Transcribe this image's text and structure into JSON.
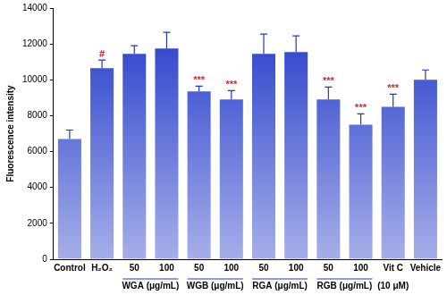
{
  "chart_data": {
    "type": "bar",
    "y_label": "Fluorescence intensity",
    "categories": [
      "Control",
      "H₂O₂",
      "50",
      "100",
      "50",
      "100",
      "50",
      "100",
      "50",
      "100",
      "Vit C",
      "Vehicle"
    ],
    "groups": [
      null,
      null,
      "WGA (μg/mL)",
      "WGA (μg/mL)",
      "WGB (μg/mL)",
      "WGB (μg/mL)",
      "RGA (μg/mL)",
      "RGA (μg/mL)",
      "RGB (μg/mL)",
      "RGB (μg/mL)",
      "(10 μM)",
      null
    ],
    "values": [
      6700,
      10650,
      11450,
      11750,
      9350,
      8900,
      11450,
      11550,
      8900,
      7500,
      8500,
      10000
    ],
    "errors": [
      500,
      450,
      450,
      900,
      300,
      500,
      1100,
      900,
      700,
      600,
      700,
      550
    ],
    "annotations": [
      null,
      "#",
      null,
      null,
      "***",
      "***",
      null,
      null,
      "***",
      "***",
      "***",
      null
    ],
    "annotation_color": "#e0202a",
    "color": "#2038c8",
    "ylim": [
      0,
      14000
    ],
    "yticks": [
      0,
      2000,
      4000,
      6000,
      8000,
      10000,
      12000,
      14000
    ],
    "grid": false
  }
}
